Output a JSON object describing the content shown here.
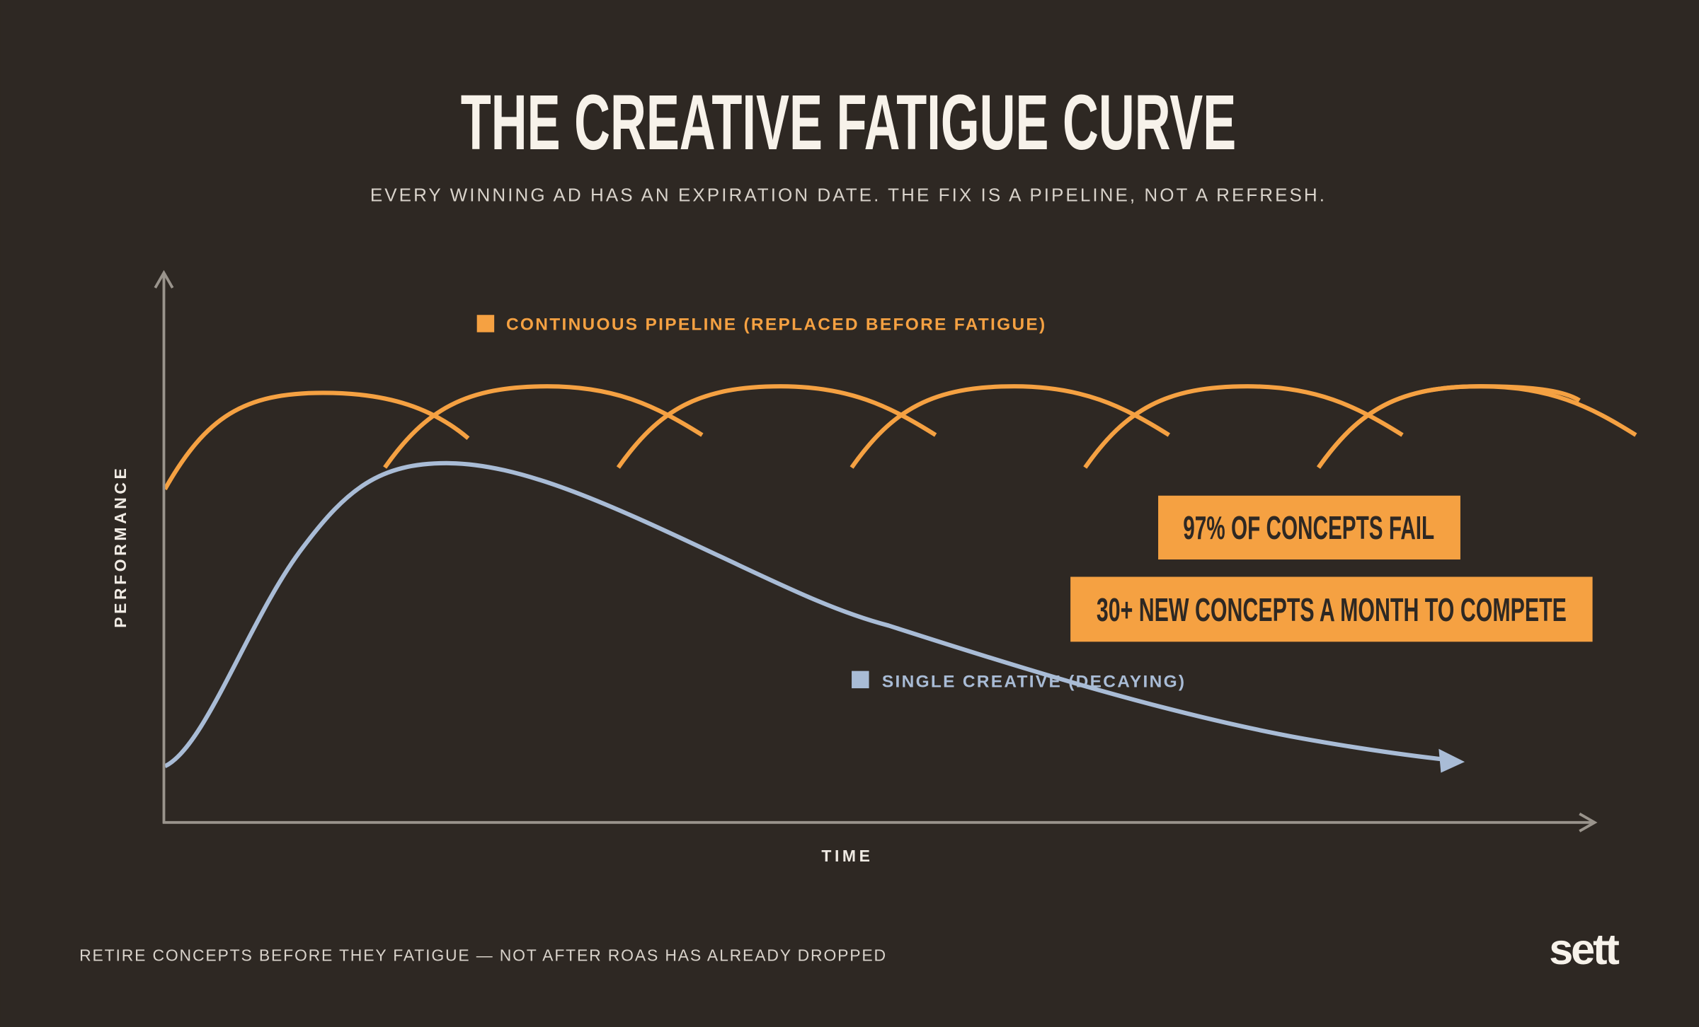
{
  "header": {
    "title": "THE CREATIVE FATIGUE CURVE",
    "subtitle": "EVERY WINNING AD HAS AN EXPIRATION DATE. THE FIX IS A PIPELINE, NOT A REFRESH."
  },
  "legend": {
    "pipeline": "CONTINUOUS PIPELINE (REPLACED BEFORE FATIGUE)",
    "single": "SINGLE CREATIVE (DECAYING)"
  },
  "axes": {
    "y": "PERFORMANCE",
    "x": "TIME"
  },
  "callouts": [
    "97% OF CONCEPTS FAIL",
    "30+ NEW CONCEPTS A MONTH TO COMPETE"
  ],
  "footer": {
    "note": "RETIRE CONCEPTS BEFORE THEY FATIGUE — NOT AFTER ROAS HAS ALREADY DROPPED",
    "logo": "sett"
  }
}
